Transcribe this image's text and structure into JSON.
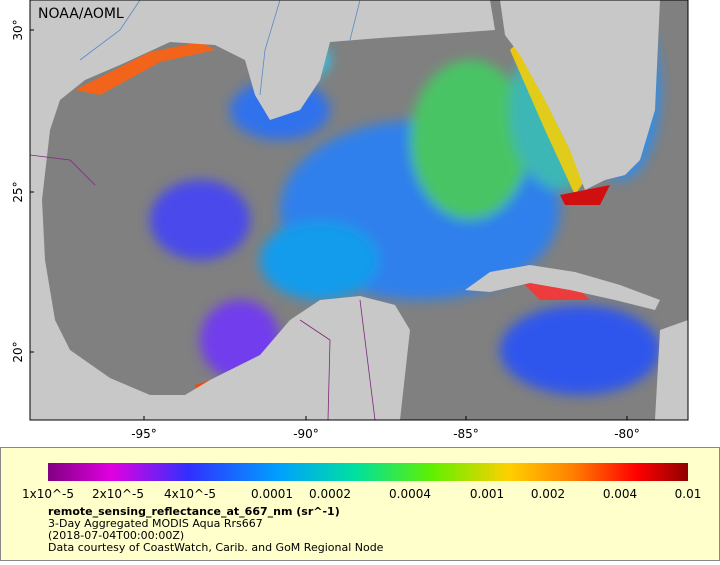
{
  "map": {
    "attribution": "NOAA/AOML",
    "lat_labels": [
      "30°",
      "25°",
      "20°"
    ],
    "lon_labels": [
      "-95°",
      "-90°",
      "-85°",
      "-80°"
    ]
  },
  "legend": {
    "colorbar_labels": [
      "1x10^-5",
      "2x10^-5",
      "4x10^-5",
      "0.0001",
      "0.0002",
      "0.0004",
      "0.001",
      "0.002",
      "0.004",
      "0.01"
    ],
    "title": "remote_sensing_reflectance_at_667_nm (sr^-1)",
    "lines": [
      "3-Day Aggregated MODIS Aqua Rrs667",
      "(2018-07-04T00:00:00Z)",
      "Data courtesy of CoastWatch, Carib. and GoM Regional Node"
    ]
  }
}
